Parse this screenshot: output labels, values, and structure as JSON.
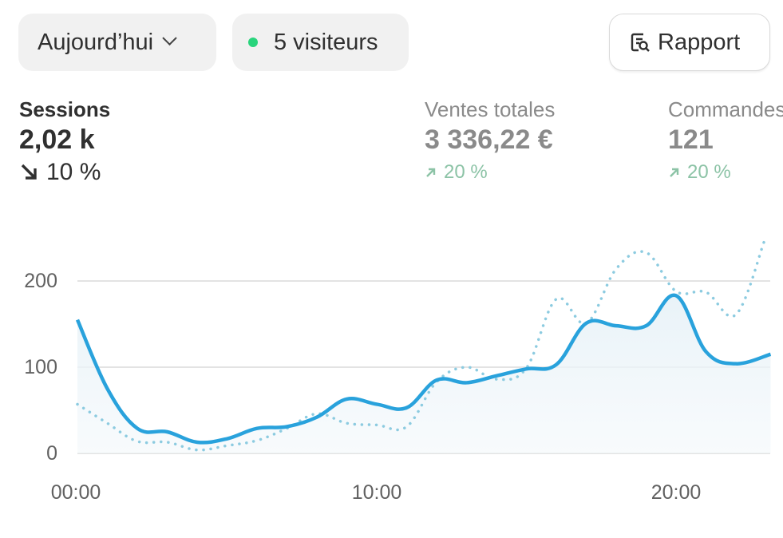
{
  "toolbar": {
    "date_range": "Aujourd’hui",
    "live_visitors": "5 visiteurs",
    "live_color": "#29d47c",
    "report_label": "Rapport"
  },
  "metrics": [
    {
      "label": "Sessions",
      "value": "2,02 k",
      "change": "10 %",
      "direction": "down"
    },
    {
      "label": "Ventes totales",
      "value": "3 336,22 €",
      "change": "20 %",
      "direction": "up"
    },
    {
      "label": "Commandes",
      "value": "121",
      "change": "20 %",
      "direction": "up"
    }
  ],
  "chart_data": {
    "type": "line",
    "x": [
      0,
      1,
      2,
      3,
      4,
      5,
      6,
      7,
      8,
      9,
      10,
      11,
      12,
      13,
      14,
      15,
      16,
      17,
      18,
      19,
      20,
      21,
      22,
      23
    ],
    "x_ticks": [
      "00:00",
      "10:00",
      "20:00"
    ],
    "y_ticks": [
      "0",
      "100",
      "200"
    ],
    "ylim": [
      0,
      240
    ],
    "grid": true,
    "series": [
      {
        "style": "solid",
        "color": "#29a2dc",
        "values": [
          155,
          75,
          29,
          25,
          13,
          17,
          29,
          31,
          42,
          63,
          57,
          53,
          85,
          82,
          90,
          98,
          103,
          151,
          148,
          148,
          183,
          118,
          104,
          115
        ]
      },
      {
        "style": "dotted",
        "color": "#8ccbe0",
        "values": [
          57,
          35,
          14,
          13,
          4,
          9,
          15,
          29,
          46,
          35,
          33,
          31,
          83,
          100,
          86,
          99,
          179,
          151,
          214,
          233,
          188,
          187,
          161,
          246
        ]
      }
    ]
  }
}
